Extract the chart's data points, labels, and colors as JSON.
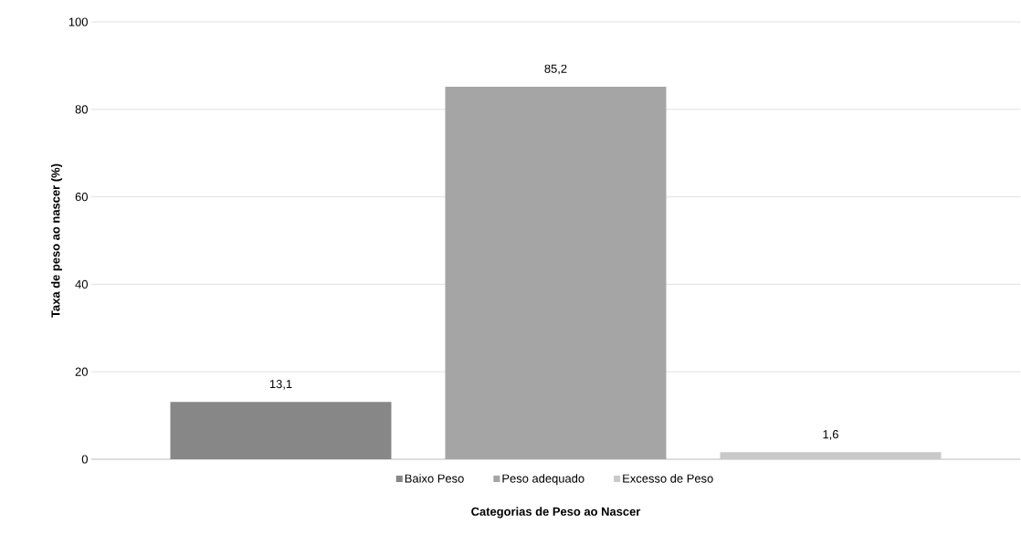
{
  "chart_data": {
    "type": "bar",
    "xlabel": "Categorias de Peso ao Nascer",
    "ylabel": "Taxa de peso ao nascer (%)",
    "categories": [
      null
    ],
    "series": [
      {
        "name": "Baixo Peso",
        "color": "#878787",
        "values": [
          13.1
        ],
        "value_labels": [
          "13,1"
        ]
      },
      {
        "name": "Peso adequado",
        "color": "#a5a5a5",
        "values": [
          85.2
        ],
        "value_labels": [
          "85,2"
        ]
      },
      {
        "name": "Excesso de Peso",
        "color": "#c9c9c9",
        "values": [
          1.6
        ],
        "value_labels": [
          "1,6"
        ]
      }
    ],
    "ylim": [
      0,
      100
    ],
    "yticks": [
      0,
      20,
      40,
      60,
      80,
      100
    ],
    "grid": "y",
    "legend": "bottom"
  }
}
